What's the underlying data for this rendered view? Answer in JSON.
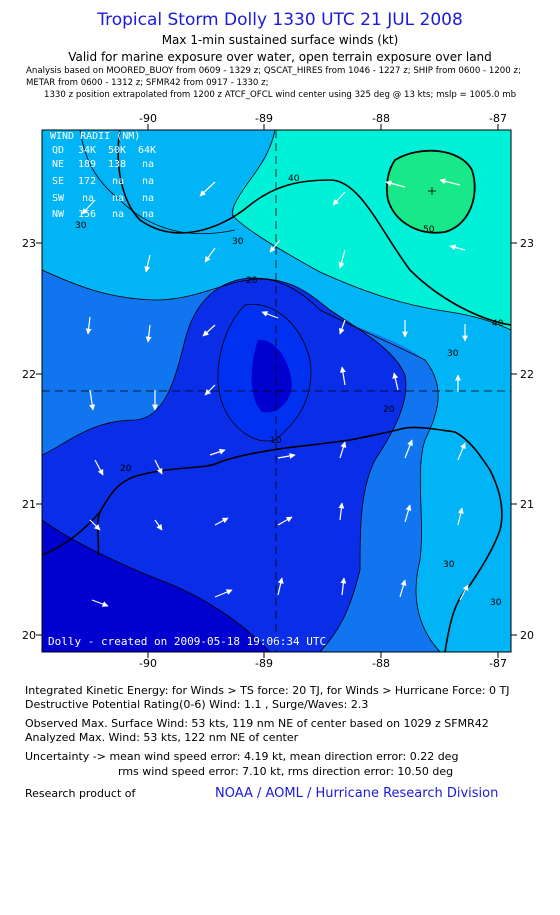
{
  "header": {
    "title": "Tropical Storm Dolly 1330 UTC 21 JUL 2008",
    "subtitle": "Max 1-min sustained surface winds (kt)",
    "validity": "Valid for marine exposure over water, open terrain exposure over land",
    "analysis_line1": "Analysis based on  MOORED_BUOY from 0609 - 1329 z;  QSCAT_HIRES from 1046 - 1227 z;  SHIP from 0600 - 1200 z;",
    "analysis_line2": "METAR from 0600 - 1312 z;  SFMR42 from 0917 - 1330 z;",
    "analysis_line3": "1330 z position extrapolated from 1200 z ATCF_OFCL wind center using 325 deg @ 13 kts; mslp = 1005.0 mb"
  },
  "map": {
    "lon_labels": [
      "-90",
      "-89",
      "-88",
      "-87"
    ],
    "lat_labels": [
      "23",
      "22",
      "21",
      "20"
    ],
    "lon_range": [
      -90.9,
      -86.9
    ],
    "lat_range": [
      19.85,
      23.85
    ],
    "center": {
      "lon": -88.9,
      "lat": 21.88
    },
    "wind_radii": {
      "title": "WIND RADII (NM)",
      "header": [
        "QD",
        "34K",
        "50K",
        "64K"
      ],
      "rows": [
        [
          "NE",
          "189",
          "138",
          "na"
        ],
        [
          "SE",
          "172",
          "na",
          "na"
        ],
        [
          "SW",
          "na",
          "na",
          "na"
        ],
        [
          "NW",
          "156",
          "na",
          "na"
        ]
      ]
    },
    "contour_labels": [
      "50",
      "40",
      "40",
      "30",
      "30",
      "30",
      "30",
      "20",
      "20",
      "20",
      "10",
      "30"
    ],
    "footer": "Dolly  -  created on 2009-05-18  19:06:34  UTC",
    "colors": {
      "lt10": "#0000cf",
      "c10_20": "#0a2ee8",
      "c20_30": "#1275f0",
      "c30_40": "#00b4f5",
      "c40_50": "#00f0d8",
      "gt50": "#18e88a"
    }
  },
  "stats": {
    "ike": "Integrated Kinetic Energy:  for Winds > TS force: 20 TJ,  for Winds > Hurricane Force: 0 TJ",
    "dpr": "Destructive Potential Rating(0-6)   Wind: 1.1 , Surge/Waves: 2.3",
    "observed": "Observed Max. Surface Wind: 53 kts, 119 nm NE of center based on 1029 z SFMR42",
    "analyzed": "Analyzed Max. Wind: 53 kts, 122 nm NE of center",
    "uncertainty1": "Uncertainty -> mean wind speed error: 4.19 kt,   mean direction error: 0.22 deg",
    "uncertainty2": "rms wind speed error: 7.10 kt,   rms direction error: 10.50 deg",
    "research": "Research product of",
    "org": "NOAA / AOML / Hurricane Research Division"
  }
}
